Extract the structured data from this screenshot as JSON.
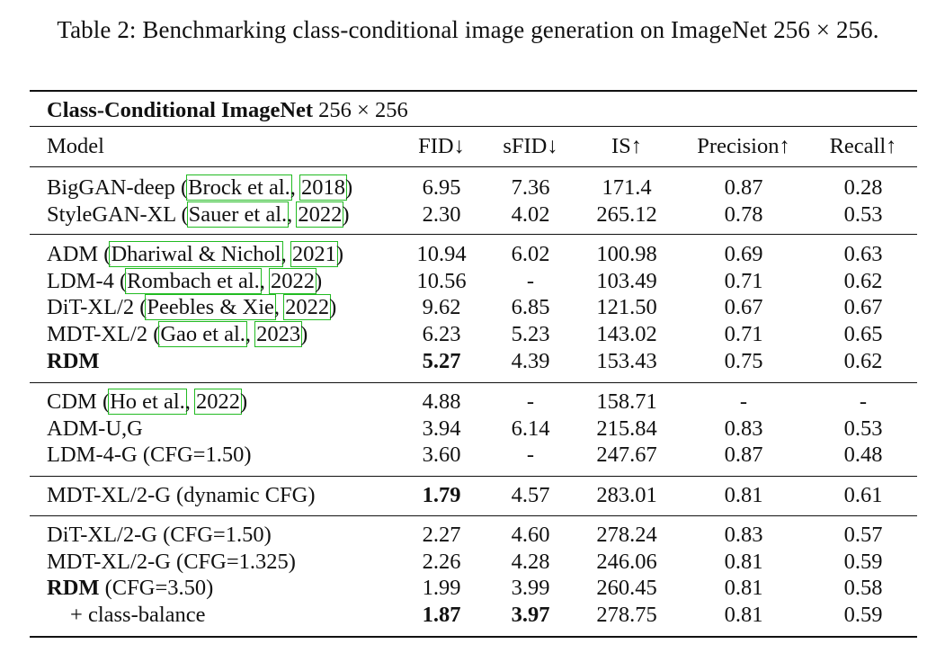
{
  "caption": "Table 2: Benchmarking class-conditional image generation on ImageNet 256 × 256.",
  "table": {
    "title_bold": "Class-Conditional ImageNet",
    "title_rest": " 256 × 256",
    "headers": {
      "model": "Model",
      "fid": "FID↓",
      "sfid": "sFID↓",
      "is": "IS↑",
      "precision": "Precision↑",
      "recall": "Recall↑"
    },
    "groups": [
      [
        {
          "model_pre": "BigGAN-deep (",
          "cite_a": "Brock et al.",
          "sep": ", ",
          "cite_b": "2018",
          "model_post": ")",
          "fid": "6.95",
          "sfid": "7.36",
          "is": "171.4",
          "precision": "0.87",
          "recall": "0.28"
        },
        {
          "model_pre": "StyleGAN-XL (",
          "cite_a": "Sauer et al.",
          "sep": ", ",
          "cite_b": "2022",
          "model_post": ")",
          "fid": "2.30",
          "sfid": "4.02",
          "is": "265.12",
          "precision": "0.78",
          "recall": "0.53"
        }
      ],
      [
        {
          "model_pre": "ADM (",
          "cite_a": "Dhariwal & Nichol",
          "sep": ", ",
          "cite_b": "2021",
          "model_post": ")",
          "fid": "10.94",
          "sfid": "6.02",
          "is": "100.98",
          "precision": "0.69",
          "recall": "0.63"
        },
        {
          "model_pre": "LDM-4 (",
          "cite_a": "Rombach et al.",
          "sep": ", ",
          "cite_b": "2022",
          "model_post": ")",
          "fid": "10.56",
          "sfid": "-",
          "is": "103.49",
          "precision": "0.71",
          "recall": "0.62"
        },
        {
          "model_pre": "DiT-XL/2 (",
          "cite_a": "Peebles & Xie",
          "sep": ", ",
          "cite_b": "2022",
          "model_post": ")",
          "fid": "9.62",
          "sfid": "6.85",
          "is": "121.50",
          "precision": "0.67",
          "recall": "0.67"
        },
        {
          "model_pre": "MDT-XL/2 (",
          "cite_a": "Gao et al.",
          "sep": ", ",
          "cite_b": "2023",
          "model_post": ")",
          "fid": "6.23",
          "sfid": "5.23",
          "is": "143.02",
          "precision": "0.71",
          "recall": "0.65"
        },
        {
          "model_bold": "RDM",
          "fid": "5.27",
          "fid_bold": true,
          "sfid": "4.39",
          "is": "153.43",
          "precision": "0.75",
          "recall": "0.62"
        }
      ],
      [
        {
          "model_pre": "CDM (",
          "cite_a": "Ho et al.",
          "sep": ", ",
          "cite_b": "2022",
          "model_post": ")",
          "fid": "4.88",
          "sfid": "-",
          "is": "158.71",
          "precision": "-",
          "recall": "-"
        },
        {
          "model_pre": "ADM-U,G",
          "fid": "3.94",
          "sfid": "6.14",
          "is": "215.84",
          "precision": "0.83",
          "recall": "0.53"
        },
        {
          "model_pre": "LDM-4-G (CFG=1.50)",
          "fid": "3.60",
          "sfid": "-",
          "is": "247.67",
          "precision": "0.87",
          "recall": "0.48"
        }
      ],
      [
        {
          "model_pre": "MDT-XL/2-G (dynamic CFG)",
          "fid": "1.79",
          "fid_bold": true,
          "sfid": "4.57",
          "is": "283.01",
          "precision": "0.81",
          "recall": "0.61"
        }
      ],
      [
        {
          "model_pre": "DiT-XL/2-G (CFG=1.50)",
          "fid": "2.27",
          "sfid": "4.60",
          "is": "278.24",
          "precision": "0.83",
          "recall": "0.57"
        },
        {
          "model_pre": "MDT-XL/2-G (CFG=1.325)",
          "fid": "2.26",
          "sfid": "4.28",
          "is": "246.06",
          "precision": "0.81",
          "recall": "0.59"
        },
        {
          "model_bold": "RDM",
          "model_pre": " (CFG=3.50)",
          "fid": "1.99",
          "sfid": "3.99",
          "is": "260.45",
          "precision": "0.81",
          "recall": "0.58"
        },
        {
          "model_pre": "+ class-balance",
          "indent": true,
          "fid": "1.87",
          "fid_bold": true,
          "sfid": "3.97",
          "sfid_bold": true,
          "is": "278.75",
          "precision": "0.81",
          "recall": "0.59"
        }
      ]
    ]
  }
}
